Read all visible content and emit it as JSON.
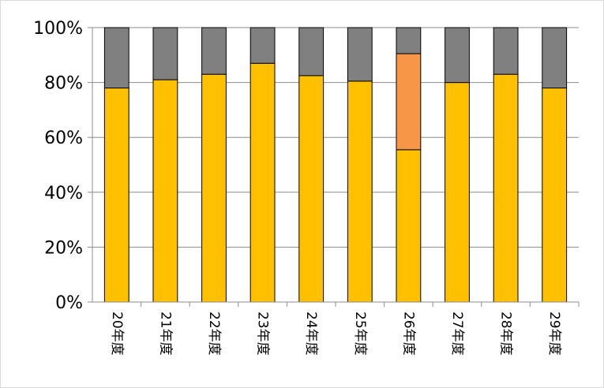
{
  "chart_data": {
    "type": "bar",
    "stacked": true,
    "normalized": true,
    "categories": [
      "20年度",
      "21年度",
      "22年度",
      "23年度",
      "24年度",
      "25年度",
      "26年度",
      "27年度",
      "28年度",
      "29年度"
    ],
    "series": [
      {
        "color": "#ffc000",
        "values": [
          78,
          81,
          83,
          87,
          82.5,
          80.5,
          55.5,
          80,
          83,
          78
        ]
      },
      {
        "color": "#f79646",
        "values": [
          0,
          0,
          0,
          0,
          0,
          0,
          35,
          0,
          0,
          0
        ]
      },
      {
        "color": "#808080",
        "values": [
          22,
          19,
          17,
          13,
          17.5,
          19.5,
          9.5,
          20,
          17,
          22
        ]
      }
    ],
    "yticks": [
      "0%",
      "20%",
      "40%",
      "60%",
      "80%",
      "100%"
    ],
    "ylim": [
      0,
      100
    ],
    "title": "",
    "xlabel": "",
    "ylabel": "",
    "grid": true,
    "legend": "none"
  }
}
